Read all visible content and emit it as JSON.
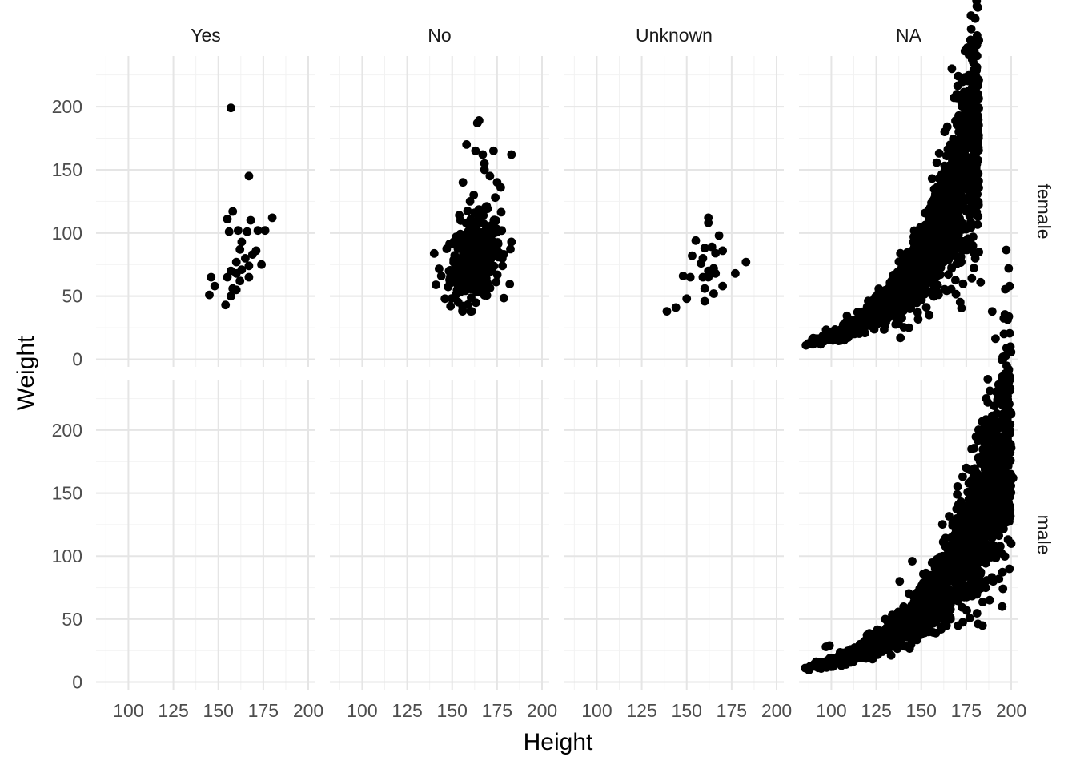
{
  "chart_data": {
    "type": "scatter",
    "xlabel": "Height",
    "ylabel": "Weight",
    "xlim": [
      82,
      204
    ],
    "ylim": [
      -6,
      240
    ],
    "x_ticks": [
      100,
      125,
      150,
      175,
      200
    ],
    "y_ticks": [
      0,
      50,
      100,
      150,
      200
    ],
    "grid": true,
    "point_color": "#000000",
    "col_facets": [
      "Yes",
      "No",
      "Unknown",
      "NA"
    ],
    "row_facets": [
      "female",
      "male"
    ],
    "panels": [
      {
        "row": "female",
        "col": "Yes",
        "points": [
          [
            157,
            199
          ],
          [
            167,
            145
          ],
          [
            158,
            117
          ],
          [
            155,
            111
          ],
          [
            168,
            110
          ],
          [
            180,
            112
          ],
          [
            161,
            102
          ],
          [
            166,
            101
          ],
          [
            172,
            102
          ],
          [
            176,
            102
          ],
          [
            156,
            101
          ],
          [
            163,
            93
          ],
          [
            162,
            87
          ],
          [
            171,
            86
          ],
          [
            169,
            83
          ],
          [
            165,
            80
          ],
          [
            160,
            77
          ],
          [
            167,
            74
          ],
          [
            174,
            75
          ],
          [
            163,
            71
          ],
          [
            157,
            70
          ],
          [
            160,
            68
          ],
          [
            146,
            65
          ],
          [
            155,
            65
          ],
          [
            167,
            65
          ],
          [
            162,
            62
          ],
          [
            148,
            58
          ],
          [
            158,
            56
          ],
          [
            160,
            55
          ],
          [
            145,
            51
          ],
          [
            157,
            50
          ],
          [
            154,
            43
          ]
        ]
      },
      {
        "row": "female",
        "col": "No",
        "generated": {
          "type": "blob",
          "n": 380,
          "cx": 163,
          "cy": 80,
          "sx": 7,
          "sy": 16,
          "xmin": 140,
          "xmax": 185,
          "ymin": 38,
          "ymax": 125
        },
        "points": [
          [
            165,
            189
          ],
          [
            164,
            187
          ],
          [
            167,
            162
          ],
          [
            183,
            162
          ],
          [
            158,
            170
          ],
          [
            163,
            165
          ],
          [
            173,
            165
          ],
          [
            168,
            155
          ],
          [
            171,
            145
          ],
          [
            168,
            150
          ],
          [
            175,
            140
          ],
          [
            177,
            136
          ],
          [
            156,
            140
          ],
          [
            162,
            130
          ],
          [
            174,
            128
          ],
          [
            183,
            93
          ],
          [
            141,
            59
          ],
          [
            146,
            48
          ],
          [
            144,
            66
          ],
          [
            178,
            74
          ],
          [
            154,
            114
          ]
        ]
      },
      {
        "row": "female",
        "col": "Unknown",
        "points": [
          [
            162,
            112
          ],
          [
            162,
            108
          ],
          [
            168,
            98
          ],
          [
            155,
            94
          ],
          [
            164,
            89
          ],
          [
            160,
            88
          ],
          [
            166,
            84
          ],
          [
            170,
            86
          ],
          [
            153,
            82
          ],
          [
            159,
            80
          ],
          [
            158,
            76
          ],
          [
            183,
            77
          ],
          [
            165,
            72
          ],
          [
            162,
            70
          ],
          [
            166,
            68
          ],
          [
            148,
            66
          ],
          [
            152,
            65
          ],
          [
            159,
            65
          ],
          [
            162,
            65
          ],
          [
            177,
            68
          ],
          [
            160,
            56
          ],
          [
            170,
            58
          ],
          [
            165,
            52
          ],
          [
            150,
            48
          ],
          [
            160,
            46
          ],
          [
            144,
            41
          ],
          [
            139,
            38
          ]
        ]
      },
      {
        "row": "female",
        "col": "NA",
        "generated": {
          "type": "growth",
          "n": 1700,
          "xmin": 85,
          "xmax": 182,
          "a": 12,
          "b": 0.0285,
          "x0": 85,
          "spread": 0.16
        },
        "points": [
          [
            167,
            230
          ],
          [
            172,
            189
          ],
          [
            163,
            180
          ],
          [
            169,
            173
          ],
          [
            167,
            167
          ],
          [
            174,
            164
          ],
          [
            175,
            155
          ],
          [
            160,
            163
          ],
          [
            172,
            158
          ],
          [
            163,
            153
          ],
          [
            166,
            145
          ],
          [
            160,
            143
          ],
          [
            174,
            136
          ],
          [
            178,
            128
          ],
          [
            182,
            85
          ],
          [
            180,
            80
          ],
          [
            183,
            61
          ],
          [
            155,
            120
          ]
        ]
      },
      {
        "row": "male",
        "col": "Yes",
        "points": []
      },
      {
        "row": "male",
        "col": "No",
        "points": []
      },
      {
        "row": "male",
        "col": "Unknown",
        "points": []
      },
      {
        "row": "male",
        "col": "NA",
        "generated": {
          "type": "growth",
          "n": 2000,
          "xmin": 85,
          "xmax": 200,
          "a": 11,
          "b": 0.0255,
          "x0": 85,
          "spread": 0.15
        },
        "points": [
          [
            187,
            222
          ],
          [
            187,
            202
          ],
          [
            187,
            191
          ],
          [
            191,
            180
          ],
          [
            178,
            185
          ],
          [
            183,
            178
          ],
          [
            185,
            172
          ],
          [
            175,
            170
          ],
          [
            193,
            166
          ],
          [
            197,
            164
          ],
          [
            201,
            162
          ],
          [
            188,
            164
          ],
          [
            173,
            163
          ],
          [
            182,
            158
          ],
          [
            190,
            155
          ],
          [
            178,
            152
          ],
          [
            170,
            149
          ],
          [
            196,
            145
          ],
          [
            199,
            130
          ],
          [
            200,
            110
          ],
          [
            199,
            90
          ],
          [
            190,
            80
          ],
          [
            195,
            60
          ],
          [
            138,
            80
          ],
          [
            130,
            50
          ],
          [
            99,
            29
          ],
          [
            97,
            28
          ],
          [
            145,
            96
          ]
        ]
      }
    ]
  }
}
